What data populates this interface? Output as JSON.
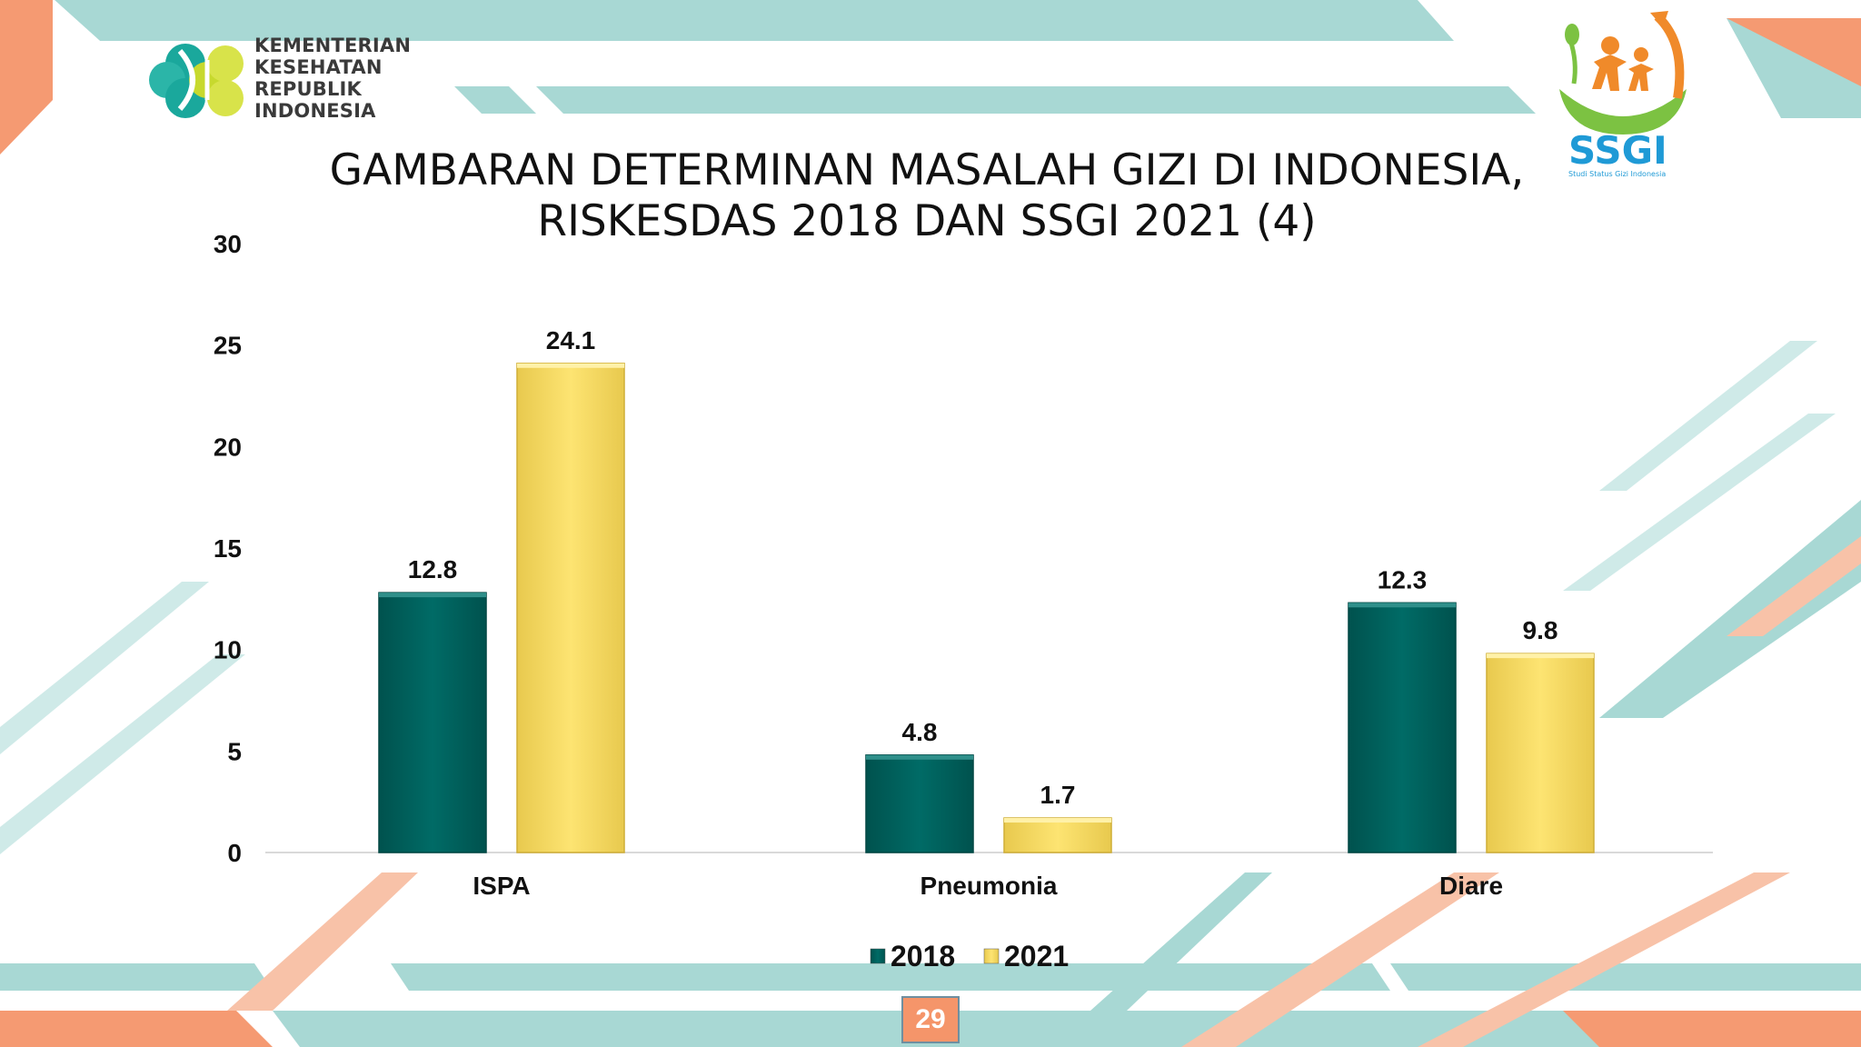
{
  "header": {
    "ministry_logo": {
      "icon": "kemenkes-flower-logo",
      "lines": [
        "KEMENTERIAN",
        "KESEHATAN",
        "REPUBLIK",
        "INDONESIA"
      ]
    },
    "ssgi_logo": {
      "icon": "ssgi-bowl-family-logo",
      "name": "SSGI",
      "tagline": "Studi Status Gizi Indonesia"
    },
    "title_line1": "GAMBARAN DETERMINAN MASALAH GIZI DI INDONESIA,",
    "title_line2": "RISKESDAS 2018 DAN SSGI 2021 (4)"
  },
  "colors": {
    "series_2018": "#006b66",
    "series_2021": "#fde472",
    "teal_deco": "#a8d8d4",
    "orange_deco": "#f59a72"
  },
  "chart_data": {
    "type": "bar",
    "categories": [
      "ISPA",
      "Pneumonia",
      "Diare"
    ],
    "series": [
      {
        "name": "2018",
        "values": [
          12.8,
          4.8,
          12.3
        ]
      },
      {
        "name": "2021",
        "values": [
          24.1,
          1.7,
          9.8
        ]
      }
    ],
    "data_labels": [
      [
        "12.8",
        "4.8",
        "12.3"
      ],
      [
        "24.1",
        "1.7",
        "9.8"
      ]
    ],
    "ylim": [
      0,
      30
    ],
    "yticks": [
      0,
      5,
      10,
      15,
      20,
      25,
      30
    ],
    "xlabel": "",
    "ylabel": "",
    "grid": false,
    "legend_position": "bottom"
  },
  "footer": {
    "page_number": "29"
  }
}
